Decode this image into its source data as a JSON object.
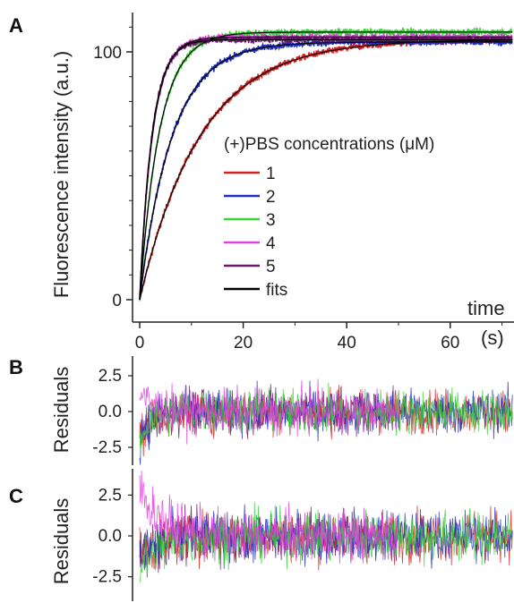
{
  "chart_data": [
    {
      "panel": "A",
      "type": "line",
      "ylabel": "Fluorescence intensity (a.u.)",
      "xlabel_right": "time",
      "xunit": "(s)",
      "xticks": [
        0,
        20,
        40,
        60
      ],
      "yticks": [
        0,
        100
      ],
      "xlim": [
        -1,
        71
      ],
      "ylim": [
        -5,
        116
      ],
      "legend": {
        "title": "(+)PBS concentrations (μM)",
        "placement": "center-right"
      },
      "series": [
        {
          "name": "1",
          "color": "#d42020",
          "plateau": 105,
          "rate": 0.085
        },
        {
          "name": "2",
          "color": "#1f2fb8",
          "plateau": 104,
          "rate": 0.16
        },
        {
          "name": "3",
          "color": "#3ad43a",
          "plateau": 108,
          "rate": 0.26
        },
        {
          "name": "4",
          "color": "#e040e0",
          "plateau": 106,
          "rate": 0.4
        },
        {
          "name": "5",
          "color": "#6b1a6b",
          "plateau": 105,
          "rate": 0.42
        },
        {
          "name": "fits",
          "color": "#000000"
        }
      ]
    },
    {
      "panel": "B",
      "type": "line",
      "ylabel": "Residuals",
      "yticks": [
        "2.5",
        "0.0",
        "-2.5"
      ],
      "ylim": [
        -4,
        4
      ]
    },
    {
      "panel": "C",
      "type": "line",
      "ylabel": "Residuals",
      "yticks": [
        "2.5",
        "0.0",
        "-2.5"
      ],
      "ylim": [
        -4,
        4
      ]
    }
  ]
}
